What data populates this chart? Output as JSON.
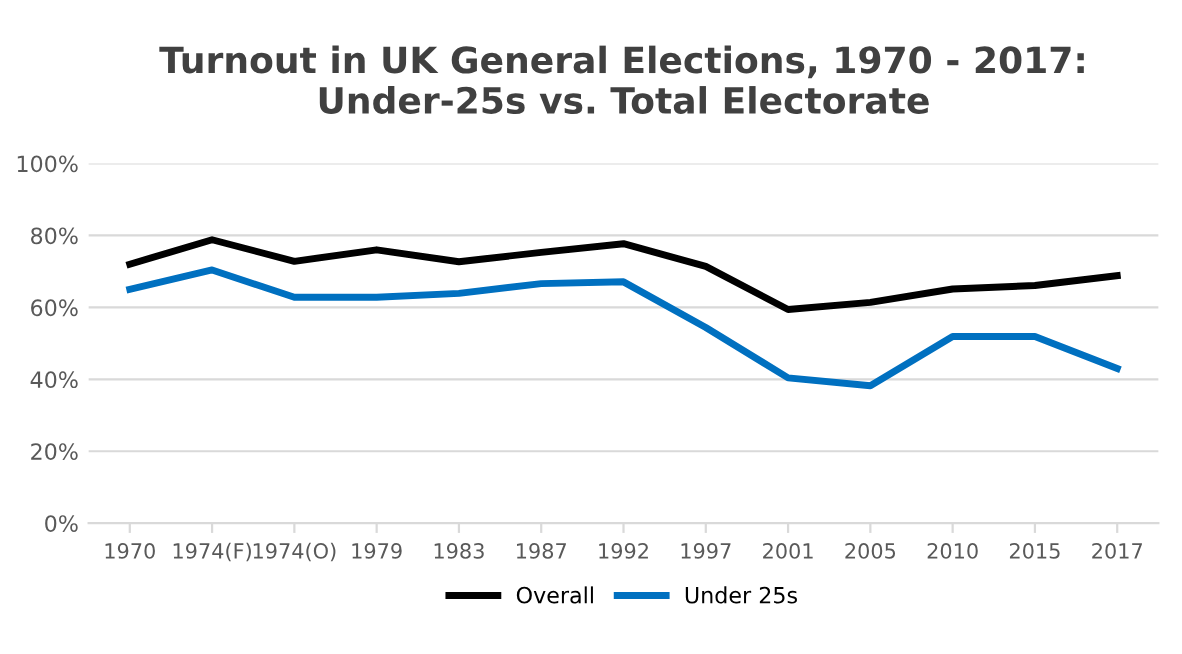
{
  "chart_data": {
    "type": "line",
    "title": "Turnout in UK General Elections, 1970 - 2017:\nUnder-25s vs. Total Electorate",
    "categories": [
      "1970",
      "1974(F)",
      "1974(O)",
      "1979",
      "1983",
      "1987",
      "1992",
      "1997",
      "2001",
      "2005",
      "2010",
      "2015",
      "2017"
    ],
    "series": [
      {
        "name": "Overall",
        "color": "#000000",
        "values": [
          72,
          78.8,
          72.8,
          76,
          72.7,
          75.3,
          77.7,
          71.4,
          59.4,
          61.4,
          65.1,
          66.1,
          68.8
        ]
      },
      {
        "name": "Under 25s",
        "color": "#0070c0",
        "values": [
          65,
          70.4,
          62.8,
          62.8,
          63.9,
          66.6,
          67.1,
          54.4,
          40.4,
          38.2,
          51.9,
          51.9,
          43
        ]
      }
    ],
    "ylim": [
      0,
      100
    ],
    "yticks": [
      {
        "value": 0,
        "label": "0%"
      },
      {
        "value": 20,
        "label": "20%"
      },
      {
        "value": 40,
        "label": "40%"
      },
      {
        "value": 60,
        "label": "60%"
      },
      {
        "value": 80,
        "label": "80%"
      },
      {
        "value": 100,
        "label": "100%"
      }
    ],
    "grid": "y",
    "legend": "bottom"
  }
}
